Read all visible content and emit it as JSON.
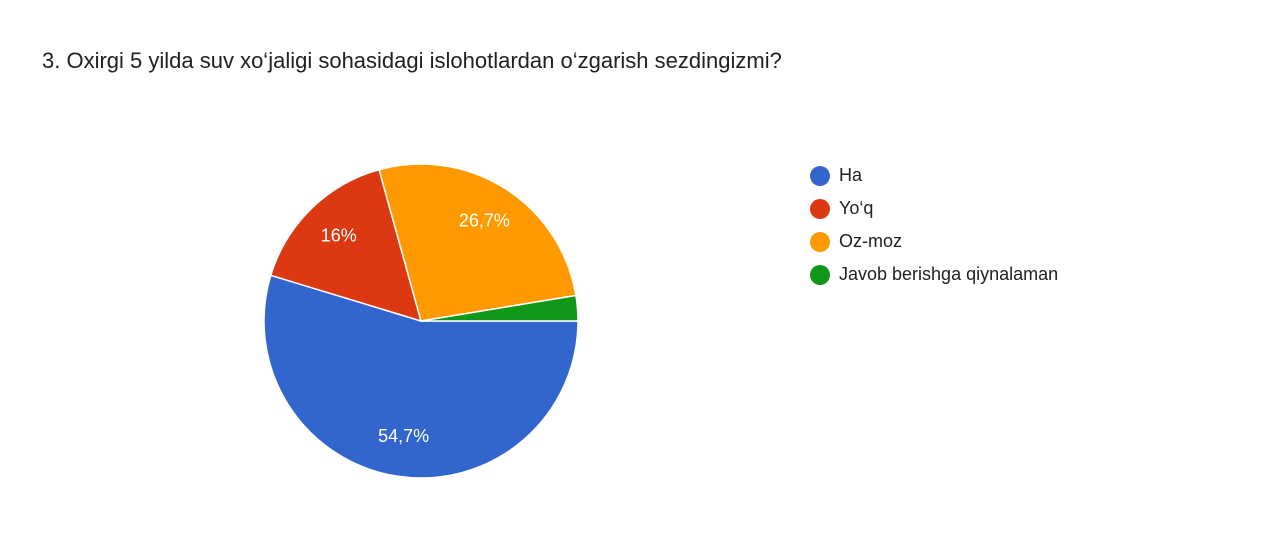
{
  "chart_data": {
    "type": "pie",
    "title": "3. Oxirgi 5 yilda suv xo‘jaligi sohasidagi islohotlardan o‘zgarish sezdingizmi?",
    "categories": [
      "Ha",
      "Yo‘q",
      "Oz-moz",
      "Javob berishga qiynalaman"
    ],
    "values": [
      54.7,
      16,
      26.7,
      2.6
    ],
    "value_labels": [
      "54,7%",
      "16%",
      "26,7%",
      null
    ],
    "colors": [
      "#3366cc",
      "#dc3912",
      "#ff9900",
      "#109618"
    ],
    "legend": "right"
  }
}
